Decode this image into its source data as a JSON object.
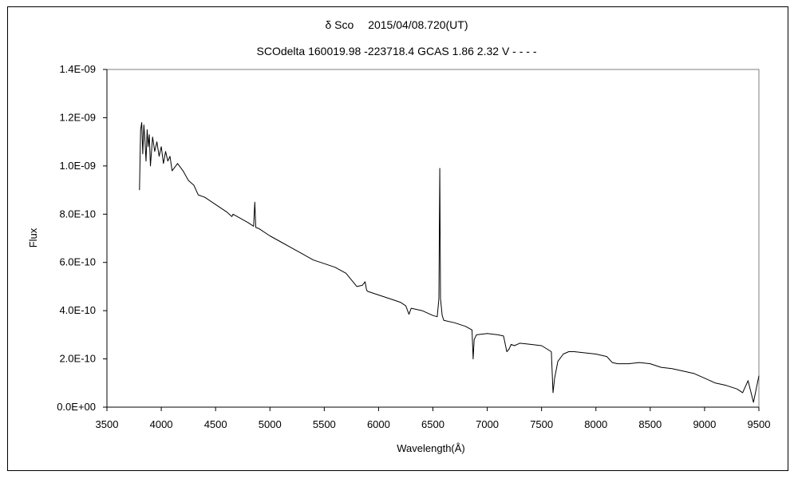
{
  "chart_data": {
    "type": "line",
    "title": "δ Sco　 2015/04/08.720(UT)",
    "subtitle": "SCOdelta 160019.98 -223718.4 GCAS 1.86 2.32 V - - - -",
    "xlabel": "Wavelength(Å)",
    "ylabel": "Flux",
    "xlim": [
      3500,
      9500
    ],
    "ylim": [
      0,
      1.4e-09
    ],
    "x_ticks": [
      3500,
      4000,
      4500,
      5000,
      5500,
      6000,
      6500,
      7000,
      7500,
      8000,
      8500,
      9000,
      9500
    ],
    "x_tick_labels": [
      "3500",
      "4000",
      "4500",
      "5000",
      "5500",
      "6000",
      "6500",
      "7000",
      "7500",
      "8000",
      "8500",
      "9000",
      "9500"
    ],
    "y_ticks": [
      0,
      2e-10,
      4e-10,
      6e-10,
      8e-10,
      1e-09,
      1.2e-09,
      1.4e-09
    ],
    "y_tick_labels": [
      "0.0E+00",
      "2.0E-10",
      "4.0E-10",
      "6.0E-10",
      "8.0E-10",
      "1.0E-09",
      "1.2E-09",
      "1.4E-09"
    ],
    "grid": false,
    "legend": "none",
    "series": [
      {
        "color": "#000000",
        "x": [
          3800,
          3810,
          3820,
          3830,
          3840,
          3850,
          3860,
          3870,
          3880,
          3890,
          3900,
          3920,
          3940,
          3960,
          3980,
          4000,
          4020,
          4040,
          4060,
          4080,
          4100,
          4150,
          4200,
          4250,
          4300,
          4340,
          4400,
          4500,
          4600,
          4650,
          4660,
          4700,
          4800,
          4850,
          4861,
          4870,
          4900,
          5000,
          5100,
          5200,
          5300,
          5400,
          5500,
          5600,
          5700,
          5800,
          5850,
          5876,
          5890,
          5900,
          6000,
          6100,
          6200,
          6250,
          6280,
          6300,
          6400,
          6500,
          6540,
          6555,
          6563,
          6570,
          6585,
          6600,
          6700,
          6800,
          6860,
          6870,
          6880,
          6900,
          7000,
          7100,
          7150,
          7180,
          7200,
          7220,
          7250,
          7300,
          7400,
          7500,
          7590,
          7605,
          7620,
          7650,
          7700,
          7750,
          7800,
          7900,
          8000,
          8100,
          8150,
          8200,
          8300,
          8400,
          8500,
          8600,
          8700,
          8800,
          8900,
          9000,
          9100,
          9200,
          9300,
          9350,
          9400,
          9450,
          9500
        ],
        "y": [
          9e-10,
          1.15e-09,
          1.18e-09,
          1.05e-09,
          1.17e-09,
          1.1e-09,
          1.02e-09,
          1.15e-09,
          1.08e-09,
          1.13e-09,
          1e-09,
          1.12e-09,
          1.06e-09,
          1.1e-09,
          1.04e-09,
          1.08e-09,
          1.01e-09,
          1.06e-09,
          1.02e-09,
          1.04e-09,
          9.8e-10,
          1.01e-09,
          9.8e-10,
          9.4e-10,
          9.2e-10,
          8.8e-10,
          8.7e-10,
          8.4e-10,
          8.1e-10,
          7.9e-10,
          8e-10,
          7.9e-10,
          7.65e-10,
          7.5e-10,
          8.5e-10,
          7.45e-10,
          7.4e-10,
          7.1e-10,
          6.85e-10,
          6.6e-10,
          6.35e-10,
          6.1e-10,
          5.95e-10,
          5.8e-10,
          5.55e-10,
          5e-10,
          5.05e-10,
          5.2e-10,
          4.85e-10,
          4.8e-10,
          4.65e-10,
          4.5e-10,
          4.35e-10,
          4.2e-10,
          3.85e-10,
          4.1e-10,
          4e-10,
          3.8e-10,
          3.75e-10,
          4.5e-10,
          9.9e-10,
          4.5e-10,
          3.8e-10,
          3.6e-10,
          3.5e-10,
          3.35e-10,
          3.2e-10,
          2e-10,
          2.8e-10,
          3e-10,
          3.05e-10,
          3e-10,
          2.95e-10,
          2.3e-10,
          2.4e-10,
          2.6e-10,
          2.55e-10,
          2.65e-10,
          2.6e-10,
          2.55e-10,
          2.3e-10,
          6e-11,
          1.2e-10,
          1.9e-10,
          2.2e-10,
          2.3e-10,
          2.3e-10,
          2.25e-10,
          2.2e-10,
          2.1e-10,
          1.85e-10,
          1.8e-10,
          1.8e-10,
          1.85e-10,
          1.8e-10,
          1.65e-10,
          1.6e-10,
          1.5e-10,
          1.4e-10,
          1.2e-10,
          1e-10,
          9e-11,
          7.5e-11,
          6e-11,
          1.1e-10,
          2e-11,
          1.3e-10
        ]
      }
    ]
  }
}
